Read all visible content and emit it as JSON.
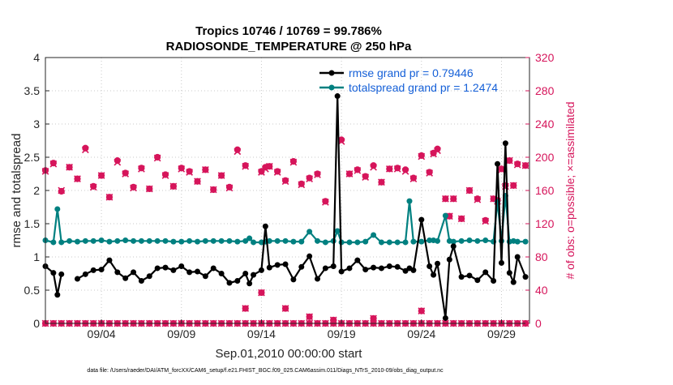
{
  "chart_data": {
    "type": "line",
    "title_line1": "Tropics 10746 / 10769 = 99.786%",
    "title_line2": "RADIOSONDE_TEMPERATURE @ 250 hPa",
    "xlabel": "Sep.01,2010 00:00:00 start",
    "ylabel_left": "rmse and totalspread",
    "ylabel_right": "# of obs: o=possible; ×=assimilated",
    "footnote": "data file: /Users/raeder/DAI/ATM_forcXX/CAM6_setup/f.e21.FHIST_BGC.f09_025.CAM6assim.011/Diags_NTrS_2010-09/obs_diag_output.nc",
    "xlim": [
      0.5,
      30.75
    ],
    "ylim_left": [
      0,
      4
    ],
    "ylim_right": [
      0,
      320
    ],
    "x_ticks": [
      {
        "x": 4,
        "label": "09/04"
      },
      {
        "x": 9,
        "label": "09/09"
      },
      {
        "x": 14,
        "label": "09/14"
      },
      {
        "x": 19,
        "label": "09/19"
      },
      {
        "x": 24,
        "label": "09/24"
      },
      {
        "x": 29,
        "label": "09/29"
      }
    ],
    "y_ticks_left": [
      "0",
      "0.5",
      "1",
      "1.5",
      "2",
      "2.5",
      "3",
      "3.5",
      "4"
    ],
    "y_ticks_right": [
      "0",
      "40",
      "80",
      "120",
      "160",
      "200",
      "240",
      "280",
      "320"
    ],
    "colors": {
      "rmse": "#000000",
      "spread": "#008080",
      "obs": "#d6155b",
      "legend_text": "#1560d8",
      "right_axis": "#d6155b"
    },
    "legend": [
      {
        "name": "rmse grand pr = 0.79446",
        "series": "rmse"
      },
      {
        "name": "totalspread grand pr = 1.2474",
        "series": "spread"
      }
    ],
    "x": [
      0.5,
      1.0,
      1.25,
      1.5,
      2.0,
      2.5,
      3.0,
      3.5,
      4.0,
      4.5,
      5.0,
      5.5,
      6.0,
      6.5,
      7.0,
      7.5,
      8.0,
      8.5,
      9.0,
      9.5,
      10.0,
      10.5,
      11.0,
      11.5,
      12.0,
      12.5,
      13.0,
      13.25,
      13.5,
      14.0,
      14.25,
      14.5,
      15.0,
      15.5,
      16.0,
      16.5,
      17.0,
      17.5,
      18.0,
      18.5,
      18.75,
      19.0,
      19.5,
      20.0,
      20.5,
      21.0,
      21.5,
      22.0,
      22.5,
      23.0,
      23.25,
      23.5,
      24.0,
      24.5,
      24.75,
      25.0,
      25.5,
      25.75,
      26.0,
      26.5,
      27.0,
      27.5,
      28.0,
      28.5,
      28.75,
      29.0,
      29.25,
      29.5,
      29.75,
      30.0,
      30.5
    ],
    "rmse": [
      0.86,
      0.76,
      0.43,
      0.74,
      null,
      0.67,
      0.74,
      0.8,
      0.81,
      0.95,
      0.77,
      0.68,
      0.77,
      0.64,
      0.71,
      0.83,
      0.84,
      0.8,
      0.86,
      0.77,
      0.78,
      0.71,
      0.83,
      0.75,
      0.61,
      0.64,
      0.75,
      0.6,
      0.73,
      0.8,
      1.46,
      0.84,
      0.88,
      0.89,
      0.66,
      0.85,
      1.01,
      0.67,
      0.83,
      0.86,
      3.42,
      0.78,
      0.83,
      0.95,
      0.81,
      0.84,
      0.83,
      0.86,
      0.85,
      0.79,
      0.83,
      0.8,
      1.56,
      0.86,
      0.73,
      0.9,
      0.08,
      0.96,
      1.16,
      0.7,
      0.72,
      0.65,
      0.77,
      0.64,
      2.4,
      0.91,
      2.71,
      0.76,
      0.62,
      1.0,
      0.7
    ],
    "spread": [
      1.25,
      1.22,
      1.72,
      1.22,
      1.24,
      1.23,
      1.24,
      1.24,
      1.25,
      1.23,
      1.24,
      1.25,
      1.24,
      1.24,
      1.24,
      1.24,
      1.24,
      1.23,
      1.23,
      1.24,
      1.23,
      1.24,
      1.24,
      1.24,
      1.24,
      1.23,
      1.24,
      1.28,
      1.22,
      1.22,
      1.23,
      1.24,
      1.24,
      1.24,
      1.23,
      1.23,
      1.38,
      1.24,
      1.22,
      1.24,
      1.39,
      1.22,
      1.22,
      1.22,
      1.23,
      1.33,
      1.22,
      1.22,
      1.22,
      1.22,
      1.84,
      1.23,
      1.23,
      1.25,
      1.25,
      1.24,
      1.62,
      1.24,
      1.23,
      1.24,
      1.25,
      1.24,
      1.25,
      1.23,
      1.83,
      1.24,
      1.92,
      1.23,
      1.24,
      1.23,
      1.23
    ],
    "obs_possible": [
      184,
      193,
      null,
      159,
      188,
      174,
      211,
      165,
      178,
      152,
      196,
      181,
      164,
      187,
      162,
      200,
      179,
      165,
      187,
      183,
      171,
      185,
      161,
      178,
      164,
      209,
      190,
      null,
      null,
      183,
      188,
      189,
      183,
      172,
      195,
      168,
      175,
      180,
      147,
      null,
      null,
      221,
      180,
      185,
      177,
      190,
      170,
      186,
      187,
      185,
      null,
      175,
      202,
      182,
      205,
      210,
      150,
      129,
      150,
      126,
      160,
      150,
      124,
      150,
      148,
      186,
      166,
      196,
      166,
      192,
      190
    ],
    "obs_assimilated": [
      183,
      192,
      null,
      160,
      188,
      174,
      209,
      164,
      178,
      152,
      194,
      180,
      163,
      186,
      162,
      199,
      178,
      165,
      186,
      182,
      171,
      185,
      161,
      178,
      163,
      207,
      189,
      null,
      null,
      182,
      186,
      189,
      182,
      171,
      194,
      167,
      174,
      179,
      146,
      null,
      null,
      219,
      180,
      184,
      176,
      188,
      170,
      186,
      186,
      183,
      null,
      174,
      201,
      181,
      204,
      208,
      150,
      129,
      150,
      126,
      160,
      149,
      123,
      150,
      147,
      185,
      165,
      196,
      166,
      191,
      190
    ],
    "obs_low": [
      {
        "x": 13.0,
        "v": 18
      },
      {
        "x": 14.0,
        "v": 37
      },
      {
        "x": 15.5,
        "v": 18
      },
      {
        "x": 17.0,
        "v": 8
      },
      {
        "x": 18.5,
        "v": 4
      },
      {
        "x": 21.0,
        "v": 6
      },
      {
        "x": 24.0,
        "v": 15
      }
    ],
    "obs_zero": [
      0.5,
      1.0,
      1.5,
      2.0,
      2.5,
      3.0,
      3.5,
      4.0,
      4.5,
      5.0,
      5.5,
      6.0,
      6.5,
      7.0,
      7.5,
      8.0,
      8.5,
      9.0,
      9.5,
      10.0,
      10.5,
      11.0,
      11.5,
      12.0,
      12.5,
      13.0,
      13.5,
      14.0,
      14.5,
      15.0,
      15.5,
      16.0,
      16.5,
      17.0,
      17.5,
      18.0,
      18.5,
      19.0,
      19.5,
      20.0,
      20.5,
      21.0,
      21.5,
      22.0,
      22.5,
      23.0,
      23.5,
      24.0,
      24.5,
      25.0,
      25.5,
      26.0,
      26.5,
      27.0,
      27.5,
      28.0,
      28.5,
      29.0,
      29.5,
      30.0,
      30.5
    ]
  }
}
